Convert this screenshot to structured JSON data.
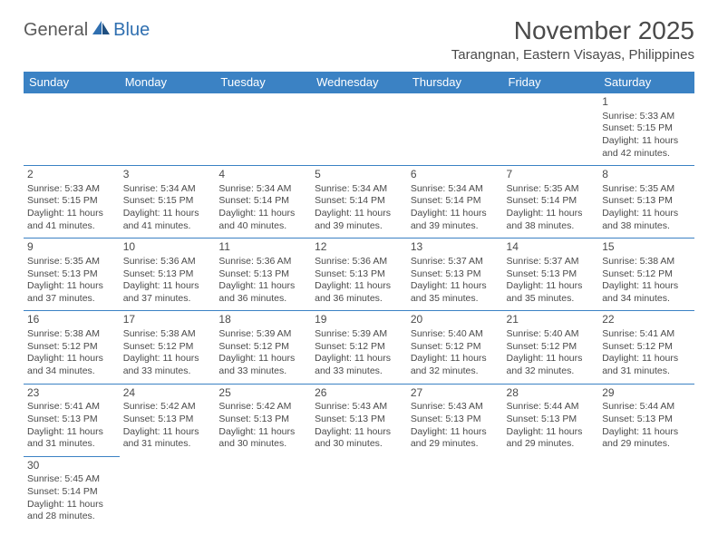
{
  "logo": {
    "text1": "General",
    "text2": "Blue"
  },
  "title": "November 2025",
  "subtitle": "Tarangnan, Eastern Visayas, Philippines",
  "colors": {
    "header_bg": "#3b82c4",
    "header_text": "#ffffff",
    "border": "#3b82c4",
    "text": "#4a4a4a",
    "logo_gray": "#5a5a5a",
    "logo_blue": "#2f6fb0",
    "background": "#ffffff"
  },
  "weekdays": [
    "Sunday",
    "Monday",
    "Tuesday",
    "Wednesday",
    "Thursday",
    "Friday",
    "Saturday"
  ],
  "weeks": [
    [
      null,
      null,
      null,
      null,
      null,
      null,
      {
        "n": "1",
        "sr": "Sunrise: 5:33 AM",
        "ss": "Sunset: 5:15 PM",
        "d1": "Daylight: 11 hours",
        "d2": "and 42 minutes."
      }
    ],
    [
      {
        "n": "2",
        "sr": "Sunrise: 5:33 AM",
        "ss": "Sunset: 5:15 PM",
        "d1": "Daylight: 11 hours",
        "d2": "and 41 minutes."
      },
      {
        "n": "3",
        "sr": "Sunrise: 5:34 AM",
        "ss": "Sunset: 5:15 PM",
        "d1": "Daylight: 11 hours",
        "d2": "and 41 minutes."
      },
      {
        "n": "4",
        "sr": "Sunrise: 5:34 AM",
        "ss": "Sunset: 5:14 PM",
        "d1": "Daylight: 11 hours",
        "d2": "and 40 minutes."
      },
      {
        "n": "5",
        "sr": "Sunrise: 5:34 AM",
        "ss": "Sunset: 5:14 PM",
        "d1": "Daylight: 11 hours",
        "d2": "and 39 minutes."
      },
      {
        "n": "6",
        "sr": "Sunrise: 5:34 AM",
        "ss": "Sunset: 5:14 PM",
        "d1": "Daylight: 11 hours",
        "d2": "and 39 minutes."
      },
      {
        "n": "7",
        "sr": "Sunrise: 5:35 AM",
        "ss": "Sunset: 5:14 PM",
        "d1": "Daylight: 11 hours",
        "d2": "and 38 minutes."
      },
      {
        "n": "8",
        "sr": "Sunrise: 5:35 AM",
        "ss": "Sunset: 5:13 PM",
        "d1": "Daylight: 11 hours",
        "d2": "and 38 minutes."
      }
    ],
    [
      {
        "n": "9",
        "sr": "Sunrise: 5:35 AM",
        "ss": "Sunset: 5:13 PM",
        "d1": "Daylight: 11 hours",
        "d2": "and 37 minutes."
      },
      {
        "n": "10",
        "sr": "Sunrise: 5:36 AM",
        "ss": "Sunset: 5:13 PM",
        "d1": "Daylight: 11 hours",
        "d2": "and 37 minutes."
      },
      {
        "n": "11",
        "sr": "Sunrise: 5:36 AM",
        "ss": "Sunset: 5:13 PM",
        "d1": "Daylight: 11 hours",
        "d2": "and 36 minutes."
      },
      {
        "n": "12",
        "sr": "Sunrise: 5:36 AM",
        "ss": "Sunset: 5:13 PM",
        "d1": "Daylight: 11 hours",
        "d2": "and 36 minutes."
      },
      {
        "n": "13",
        "sr": "Sunrise: 5:37 AM",
        "ss": "Sunset: 5:13 PM",
        "d1": "Daylight: 11 hours",
        "d2": "and 35 minutes."
      },
      {
        "n": "14",
        "sr": "Sunrise: 5:37 AM",
        "ss": "Sunset: 5:13 PM",
        "d1": "Daylight: 11 hours",
        "d2": "and 35 minutes."
      },
      {
        "n": "15",
        "sr": "Sunrise: 5:38 AM",
        "ss": "Sunset: 5:12 PM",
        "d1": "Daylight: 11 hours",
        "d2": "and 34 minutes."
      }
    ],
    [
      {
        "n": "16",
        "sr": "Sunrise: 5:38 AM",
        "ss": "Sunset: 5:12 PM",
        "d1": "Daylight: 11 hours",
        "d2": "and 34 minutes."
      },
      {
        "n": "17",
        "sr": "Sunrise: 5:38 AM",
        "ss": "Sunset: 5:12 PM",
        "d1": "Daylight: 11 hours",
        "d2": "and 33 minutes."
      },
      {
        "n": "18",
        "sr": "Sunrise: 5:39 AM",
        "ss": "Sunset: 5:12 PM",
        "d1": "Daylight: 11 hours",
        "d2": "and 33 minutes."
      },
      {
        "n": "19",
        "sr": "Sunrise: 5:39 AM",
        "ss": "Sunset: 5:12 PM",
        "d1": "Daylight: 11 hours",
        "d2": "and 33 minutes."
      },
      {
        "n": "20",
        "sr": "Sunrise: 5:40 AM",
        "ss": "Sunset: 5:12 PM",
        "d1": "Daylight: 11 hours",
        "d2": "and 32 minutes."
      },
      {
        "n": "21",
        "sr": "Sunrise: 5:40 AM",
        "ss": "Sunset: 5:12 PM",
        "d1": "Daylight: 11 hours",
        "d2": "and 32 minutes."
      },
      {
        "n": "22",
        "sr": "Sunrise: 5:41 AM",
        "ss": "Sunset: 5:12 PM",
        "d1": "Daylight: 11 hours",
        "d2": "and 31 minutes."
      }
    ],
    [
      {
        "n": "23",
        "sr": "Sunrise: 5:41 AM",
        "ss": "Sunset: 5:13 PM",
        "d1": "Daylight: 11 hours",
        "d2": "and 31 minutes."
      },
      {
        "n": "24",
        "sr": "Sunrise: 5:42 AM",
        "ss": "Sunset: 5:13 PM",
        "d1": "Daylight: 11 hours",
        "d2": "and 31 minutes."
      },
      {
        "n": "25",
        "sr": "Sunrise: 5:42 AM",
        "ss": "Sunset: 5:13 PM",
        "d1": "Daylight: 11 hours",
        "d2": "and 30 minutes."
      },
      {
        "n": "26",
        "sr": "Sunrise: 5:43 AM",
        "ss": "Sunset: 5:13 PM",
        "d1": "Daylight: 11 hours",
        "d2": "and 30 minutes."
      },
      {
        "n": "27",
        "sr": "Sunrise: 5:43 AM",
        "ss": "Sunset: 5:13 PM",
        "d1": "Daylight: 11 hours",
        "d2": "and 29 minutes."
      },
      {
        "n": "28",
        "sr": "Sunrise: 5:44 AM",
        "ss": "Sunset: 5:13 PM",
        "d1": "Daylight: 11 hours",
        "d2": "and 29 minutes."
      },
      {
        "n": "29",
        "sr": "Sunrise: 5:44 AM",
        "ss": "Sunset: 5:13 PM",
        "d1": "Daylight: 11 hours",
        "d2": "and 29 minutes."
      }
    ],
    [
      {
        "n": "30",
        "sr": "Sunrise: 5:45 AM",
        "ss": "Sunset: 5:14 PM",
        "d1": "Daylight: 11 hours",
        "d2": "and 28 minutes."
      },
      null,
      null,
      null,
      null,
      null,
      null
    ]
  ]
}
